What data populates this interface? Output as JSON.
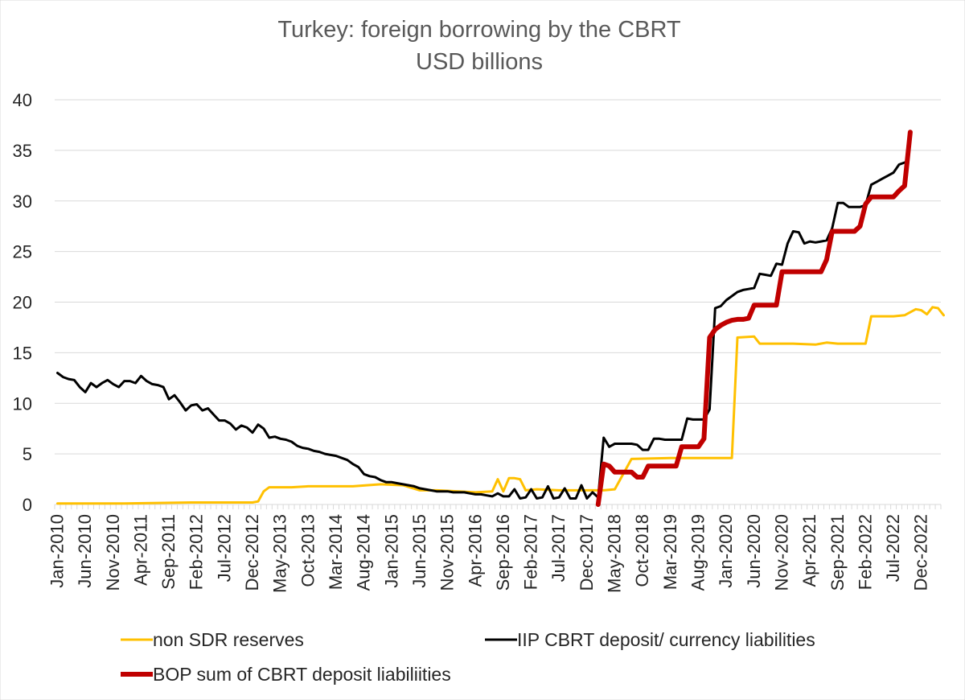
{
  "chart_data": {
    "type": "line",
    "title": "Turkey: foreign borrowing by the CBRT",
    "subtitle": "USD billions",
    "xlabel": "",
    "ylabel": "",
    "ylim": [
      0,
      40
    ],
    "y_ticks": [
      0,
      5,
      10,
      15,
      20,
      25,
      30,
      35,
      40
    ],
    "grid": true,
    "legend_position": "bottom",
    "x_start": "Jan-2010",
    "x_end": "Mar-2023",
    "x_tick_labels": [
      "Jan-2010",
      "Jun-2010",
      "Nov-2010",
      "Apr-2011",
      "Sep-2011",
      "Feb-2012",
      "Jul-2012",
      "Dec-2012",
      "May-2013",
      "Oct-2013",
      "Mar-2014",
      "Aug-2014",
      "Jan-2015",
      "Jun-2015",
      "Nov-2015",
      "Apr-2016",
      "Sep-2016",
      "Feb-2017",
      "Jul-2017",
      "Dec-2017",
      "May-2018",
      "Oct-2018",
      "Mar-2019",
      "Aug-2019",
      "Jan-2020",
      "Jun-2020",
      "Nov-2020",
      "Apr-2021",
      "Sep-2021",
      "Feb-2022",
      "Jul-2022",
      "Dec-2022"
    ],
    "series": [
      {
        "name": "non SDR reserves",
        "color": "#FFC000",
        "line_width": 3,
        "points": [
          [
            0,
            0.1
          ],
          [
            12,
            0.1
          ],
          [
            24,
            0.2
          ],
          [
            35,
            0.2
          ],
          [
            36,
            0.3
          ],
          [
            37,
            1.3
          ],
          [
            38,
            1.7
          ],
          [
            42,
            1.7
          ],
          [
            45,
            1.8
          ],
          [
            48,
            1.8
          ],
          [
            53,
            1.8
          ],
          [
            58,
            2.0
          ],
          [
            62,
            1.9
          ],
          [
            65,
            1.4
          ],
          [
            68,
            1.4
          ],
          [
            72,
            1.3
          ],
          [
            75,
            1.2
          ],
          [
            78,
            1.3
          ],
          [
            79,
            2.5
          ],
          [
            80,
            1.3
          ],
          [
            81,
            2.6
          ],
          [
            82,
            2.6
          ],
          [
            83,
            2.5
          ],
          [
            84,
            1.4
          ],
          [
            86,
            1.5
          ],
          [
            90,
            1.4
          ],
          [
            94,
            1.4
          ],
          [
            98,
            1.4
          ],
          [
            100,
            1.5
          ],
          [
            103,
            4.5
          ],
          [
            110,
            4.6
          ],
          [
            116,
            4.6
          ],
          [
            120,
            4.6
          ],
          [
            121,
            4.6
          ],
          [
            122,
            16.5
          ],
          [
            125,
            16.6
          ],
          [
            126,
            15.9
          ],
          [
            132,
            15.9
          ],
          [
            136,
            15.8
          ],
          [
            138,
            16.0
          ],
          [
            140,
            15.9
          ],
          [
            145,
            15.9
          ],
          [
            146,
            18.6
          ],
          [
            150,
            18.6
          ],
          [
            152,
            18.7
          ],
          [
            154,
            19.3
          ],
          [
            155,
            19.2
          ],
          [
            156,
            18.8
          ],
          [
            157,
            19.5
          ],
          [
            158,
            19.4
          ],
          [
            159,
            18.7
          ]
        ]
      },
      {
        "name": "IIP CBRT deposit/ currency liabilities",
        "color": "#000000",
        "line_width": 3,
        "points": [
          [
            0,
            13.0
          ],
          [
            1,
            12.6
          ],
          [
            2,
            12.4
          ],
          [
            3,
            12.3
          ],
          [
            4,
            11.6
          ],
          [
            5,
            11.1
          ],
          [
            6,
            12.0
          ],
          [
            7,
            11.6
          ],
          [
            8,
            12.0
          ],
          [
            9,
            12.3
          ],
          [
            10,
            11.9
          ],
          [
            11,
            11.6
          ],
          [
            12,
            12.2
          ],
          [
            13,
            12.2
          ],
          [
            14,
            12.0
          ],
          [
            15,
            12.7
          ],
          [
            16,
            12.2
          ],
          [
            17,
            11.9
          ],
          [
            18,
            11.8
          ],
          [
            19,
            11.6
          ],
          [
            20,
            10.4
          ],
          [
            21,
            10.8
          ],
          [
            22,
            10.1
          ],
          [
            23,
            9.3
          ],
          [
            24,
            9.8
          ],
          [
            25,
            9.9
          ],
          [
            26,
            9.3
          ],
          [
            27,
            9.5
          ],
          [
            28,
            8.9
          ],
          [
            29,
            8.3
          ],
          [
            30,
            8.3
          ],
          [
            31,
            8.0
          ],
          [
            32,
            7.4
          ],
          [
            33,
            7.8
          ],
          [
            34,
            7.6
          ],
          [
            35,
            7.1
          ],
          [
            36,
            7.9
          ],
          [
            37,
            7.5
          ],
          [
            38,
            6.6
          ],
          [
            39,
            6.7
          ],
          [
            40,
            6.5
          ],
          [
            41,
            6.4
          ],
          [
            42,
            6.2
          ],
          [
            43,
            5.8
          ],
          [
            44,
            5.6
          ],
          [
            45,
            5.5
          ],
          [
            46,
            5.3
          ],
          [
            47,
            5.2
          ],
          [
            48,
            5.0
          ],
          [
            49,
            4.9
          ],
          [
            50,
            4.8
          ],
          [
            51,
            4.6
          ],
          [
            52,
            4.4
          ],
          [
            53,
            4.0
          ],
          [
            54,
            3.7
          ],
          [
            55,
            3.0
          ],
          [
            56,
            2.8
          ],
          [
            57,
            2.7
          ],
          [
            58,
            2.4
          ],
          [
            59,
            2.2
          ],
          [
            60,
            2.2
          ],
          [
            61,
            2.1
          ],
          [
            62,
            2.0
          ],
          [
            63,
            1.9
          ],
          [
            64,
            1.8
          ],
          [
            65,
            1.6
          ],
          [
            66,
            1.5
          ],
          [
            67,
            1.4
          ],
          [
            68,
            1.3
          ],
          [
            69,
            1.3
          ],
          [
            70,
            1.3
          ],
          [
            71,
            1.2
          ],
          [
            72,
            1.2
          ],
          [
            73,
            1.2
          ],
          [
            74,
            1.1
          ],
          [
            75,
            1.0
          ],
          [
            76,
            1.0
          ],
          [
            77,
            0.9
          ],
          [
            78,
            0.8
          ],
          [
            79,
            1.1
          ],
          [
            80,
            0.8
          ],
          [
            81,
            0.8
          ],
          [
            82,
            1.5
          ],
          [
            83,
            0.6
          ],
          [
            84,
            0.7
          ],
          [
            85,
            1.5
          ],
          [
            86,
            0.6
          ],
          [
            87,
            0.7
          ],
          [
            88,
            1.8
          ],
          [
            89,
            0.6
          ],
          [
            90,
            0.7
          ],
          [
            91,
            1.6
          ],
          [
            92,
            0.6
          ],
          [
            93,
            0.6
          ],
          [
            94,
            1.9
          ],
          [
            95,
            0.6
          ],
          [
            96,
            1.2
          ],
          [
            97,
            0.7
          ],
          [
            98,
            6.6
          ],
          [
            99,
            5.7
          ],
          [
            100,
            6.0
          ],
          [
            101,
            6.0
          ],
          [
            102,
            6.0
          ],
          [
            103,
            6.0
          ],
          [
            104,
            5.9
          ],
          [
            105,
            5.4
          ],
          [
            106,
            5.4
          ],
          [
            107,
            6.5
          ],
          [
            108,
            6.5
          ],
          [
            109,
            6.4
          ],
          [
            110,
            6.4
          ],
          [
            111,
            6.4
          ],
          [
            112,
            6.4
          ],
          [
            113,
            8.5
          ],
          [
            114,
            8.4
          ],
          [
            115,
            8.4
          ],
          [
            116,
            8.4
          ],
          [
            117,
            9.4
          ],
          [
            118,
            19.4
          ],
          [
            119,
            19.6
          ],
          [
            120,
            20.2
          ],
          [
            121,
            20.6
          ],
          [
            122,
            21.0
          ],
          [
            123,
            21.2
          ],
          [
            124,
            21.3
          ],
          [
            125,
            21.4
          ],
          [
            126,
            22.8
          ],
          [
            127,
            22.7
          ],
          [
            128,
            22.6
          ],
          [
            129,
            23.8
          ],
          [
            130,
            23.7
          ],
          [
            131,
            25.8
          ],
          [
            132,
            27.0
          ],
          [
            133,
            26.9
          ],
          [
            134,
            25.8
          ],
          [
            135,
            26.0
          ],
          [
            136,
            25.9
          ],
          [
            137,
            26.0
          ],
          [
            138,
            26.1
          ],
          [
            139,
            27.3
          ],
          [
            140,
            29.8
          ],
          [
            141,
            29.8
          ],
          [
            142,
            29.4
          ],
          [
            143,
            29.4
          ],
          [
            144,
            29.4
          ],
          [
            145,
            29.6
          ],
          [
            146,
            31.6
          ],
          [
            147,
            31.9
          ],
          [
            148,
            32.2
          ],
          [
            149,
            32.5
          ],
          [
            150,
            32.8
          ],
          [
            151,
            33.6
          ],
          [
            152,
            33.8
          ]
        ]
      },
      {
        "name": "BOP sum of CBRT deposit liabiliities",
        "color": "#C00000",
        "line_width": 6,
        "points": [
          [
            97,
            0.0
          ],
          [
            98,
            4.0
          ],
          [
            99,
            3.8
          ],
          [
            100,
            3.2
          ],
          [
            101,
            3.2
          ],
          [
            102,
            3.2
          ],
          [
            103,
            3.2
          ],
          [
            104,
            2.7
          ],
          [
            105,
            2.7
          ],
          [
            106,
            3.8
          ],
          [
            107,
            3.8
          ],
          [
            108,
            3.8
          ],
          [
            109,
            3.8
          ],
          [
            110,
            3.8
          ],
          [
            111,
            3.8
          ],
          [
            112,
            5.7
          ],
          [
            113,
            5.7
          ],
          [
            114,
            5.7
          ],
          [
            115,
            5.7
          ],
          [
            116,
            6.5
          ],
          [
            117,
            16.5
          ],
          [
            118,
            17.3
          ],
          [
            119,
            17.7
          ],
          [
            120,
            18.0
          ],
          [
            121,
            18.2
          ],
          [
            122,
            18.3
          ],
          [
            123,
            18.3
          ],
          [
            124,
            18.4
          ],
          [
            125,
            19.7
          ],
          [
            126,
            19.7
          ],
          [
            127,
            19.7
          ],
          [
            128,
            19.7
          ],
          [
            129,
            19.7
          ],
          [
            130,
            23.0
          ],
          [
            131,
            23.0
          ],
          [
            132,
            23.0
          ],
          [
            133,
            23.0
          ],
          [
            134,
            23.0
          ],
          [
            135,
            23.0
          ],
          [
            136,
            23.0
          ],
          [
            137,
            23.0
          ],
          [
            138,
            24.2
          ],
          [
            139,
            27.0
          ],
          [
            140,
            27.0
          ],
          [
            141,
            27.0
          ],
          [
            142,
            27.0
          ],
          [
            143,
            27.0
          ],
          [
            144,
            27.5
          ],
          [
            145,
            29.7
          ],
          [
            146,
            30.4
          ],
          [
            147,
            30.4
          ],
          [
            148,
            30.4
          ],
          [
            149,
            30.4
          ],
          [
            150,
            30.4
          ],
          [
            151,
            31.0
          ],
          [
            152,
            31.5
          ],
          [
            153,
            36.8
          ]
        ]
      }
    ]
  }
}
